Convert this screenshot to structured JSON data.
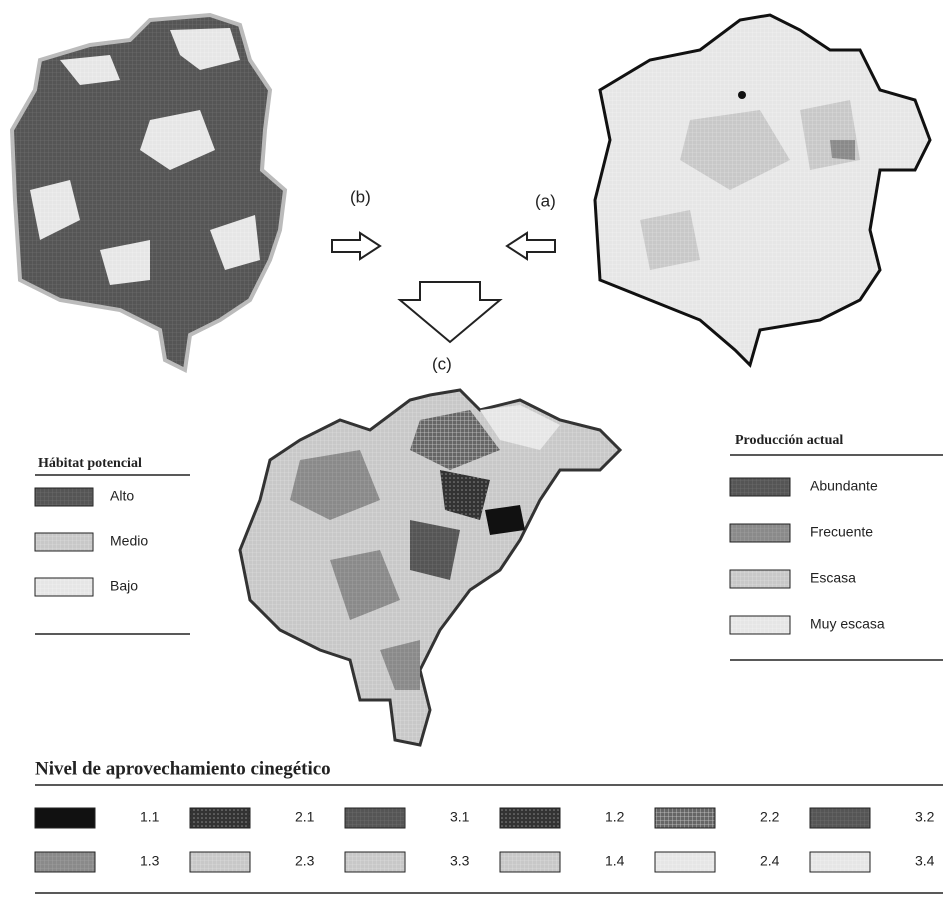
{
  "labels": {
    "b": "(b)",
    "a": "(a)",
    "c": "(c)"
  },
  "habitat_legend": {
    "title": "Hábitat potencial",
    "items": [
      "Alto",
      "Medio",
      "Bajo"
    ]
  },
  "production_legend": {
    "title": "Producción actual",
    "items": [
      "Abundante",
      "Frecuente",
      "Escasa",
      "Muy escasa"
    ]
  },
  "level_legend": {
    "title": "Nivel de aprovechamiento cinegético",
    "rows": [
      [
        "1.1",
        "2.1",
        "3.1",
        "1.2",
        "2.2",
        "3.2"
      ],
      [
        "1.3",
        "2.3",
        "3.3",
        "1.4",
        "2.4",
        "3.4"
      ]
    ]
  }
}
